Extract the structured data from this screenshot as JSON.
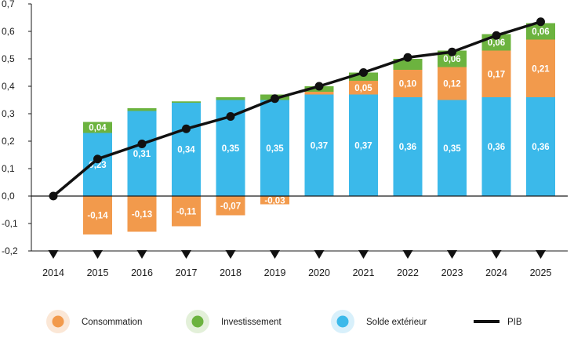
{
  "chart_data": {
    "type": "bar",
    "stacked": true,
    "categories": [
      "2014",
      "2015",
      "2016",
      "2017",
      "2018",
      "2019",
      "2020",
      "2021",
      "2022",
      "2023",
      "2024",
      "2025"
    ],
    "series": [
      {
        "name": "Solde extérieur",
        "color": "#3bb9ea",
        "values": [
          0,
          0.23,
          0.31,
          0.34,
          0.35,
          0.35,
          0.37,
          0.37,
          0.36,
          0.35,
          0.36,
          0.36
        ],
        "labels": [
          "",
          "0,23",
          "0,31",
          "0,34",
          "0,35",
          "0,35",
          "0,37",
          "0,37",
          "0,36",
          "0,35",
          "0,36",
          "0,36"
        ]
      },
      {
        "name": "Consommation",
        "color": "#f29a4c",
        "values": [
          0,
          -0.14,
          -0.13,
          -0.11,
          -0.07,
          -0.03,
          0.01,
          0.05,
          0.1,
          0.12,
          0.17,
          0.21
        ],
        "labels": [
          "",
          "-0,14",
          "-0,13",
          "-0,11",
          "-0,07",
          "-0,03",
          "",
          "0,05",
          "0,10",
          "0,12",
          "0,17",
          "0,21"
        ]
      },
      {
        "name": "Investissement",
        "color": "#6cb33f",
        "values": [
          0,
          0.04,
          0.01,
          0.005,
          0.01,
          0.02,
          0.02,
          0.03,
          0.04,
          0.06,
          0.06,
          0.06
        ],
        "labels": [
          "",
          "0,04",
          "",
          "",
          "",
          "",
          "",
          "",
          "",
          "0,06",
          "0,06",
          "0,06"
        ]
      }
    ],
    "line": {
      "name": "PIB",
      "color": "#111111",
      "values": [
        0.0,
        0.135,
        0.19,
        0.245,
        0.29,
        0.355,
        0.4,
        0.45,
        0.505,
        0.525,
        0.585,
        0.635
      ]
    },
    "yticks": [
      "-0,2",
      "-0,1",
      "0,0",
      "0,1",
      "0,2",
      "0,3",
      "0,4",
      "0,5",
      "0,6",
      "0,7"
    ],
    "ylim": [
      -0.2,
      0.7
    ],
    "legend": [
      {
        "name": "Consommation",
        "color": "#f29a4c",
        "halo": "#fbe7d6",
        "kind": "dot"
      },
      {
        "name": "Investissement",
        "color": "#6cb33f",
        "halo": "#e3f0d9",
        "kind": "dot"
      },
      {
        "name": "Solde extérieur",
        "color": "#3bb9ea",
        "halo": "#d8f0fb",
        "kind": "dot"
      },
      {
        "name": "PIB",
        "color": "#111111",
        "kind": "line"
      }
    ],
    "legend_position": "bottom",
    "grid": false
  }
}
